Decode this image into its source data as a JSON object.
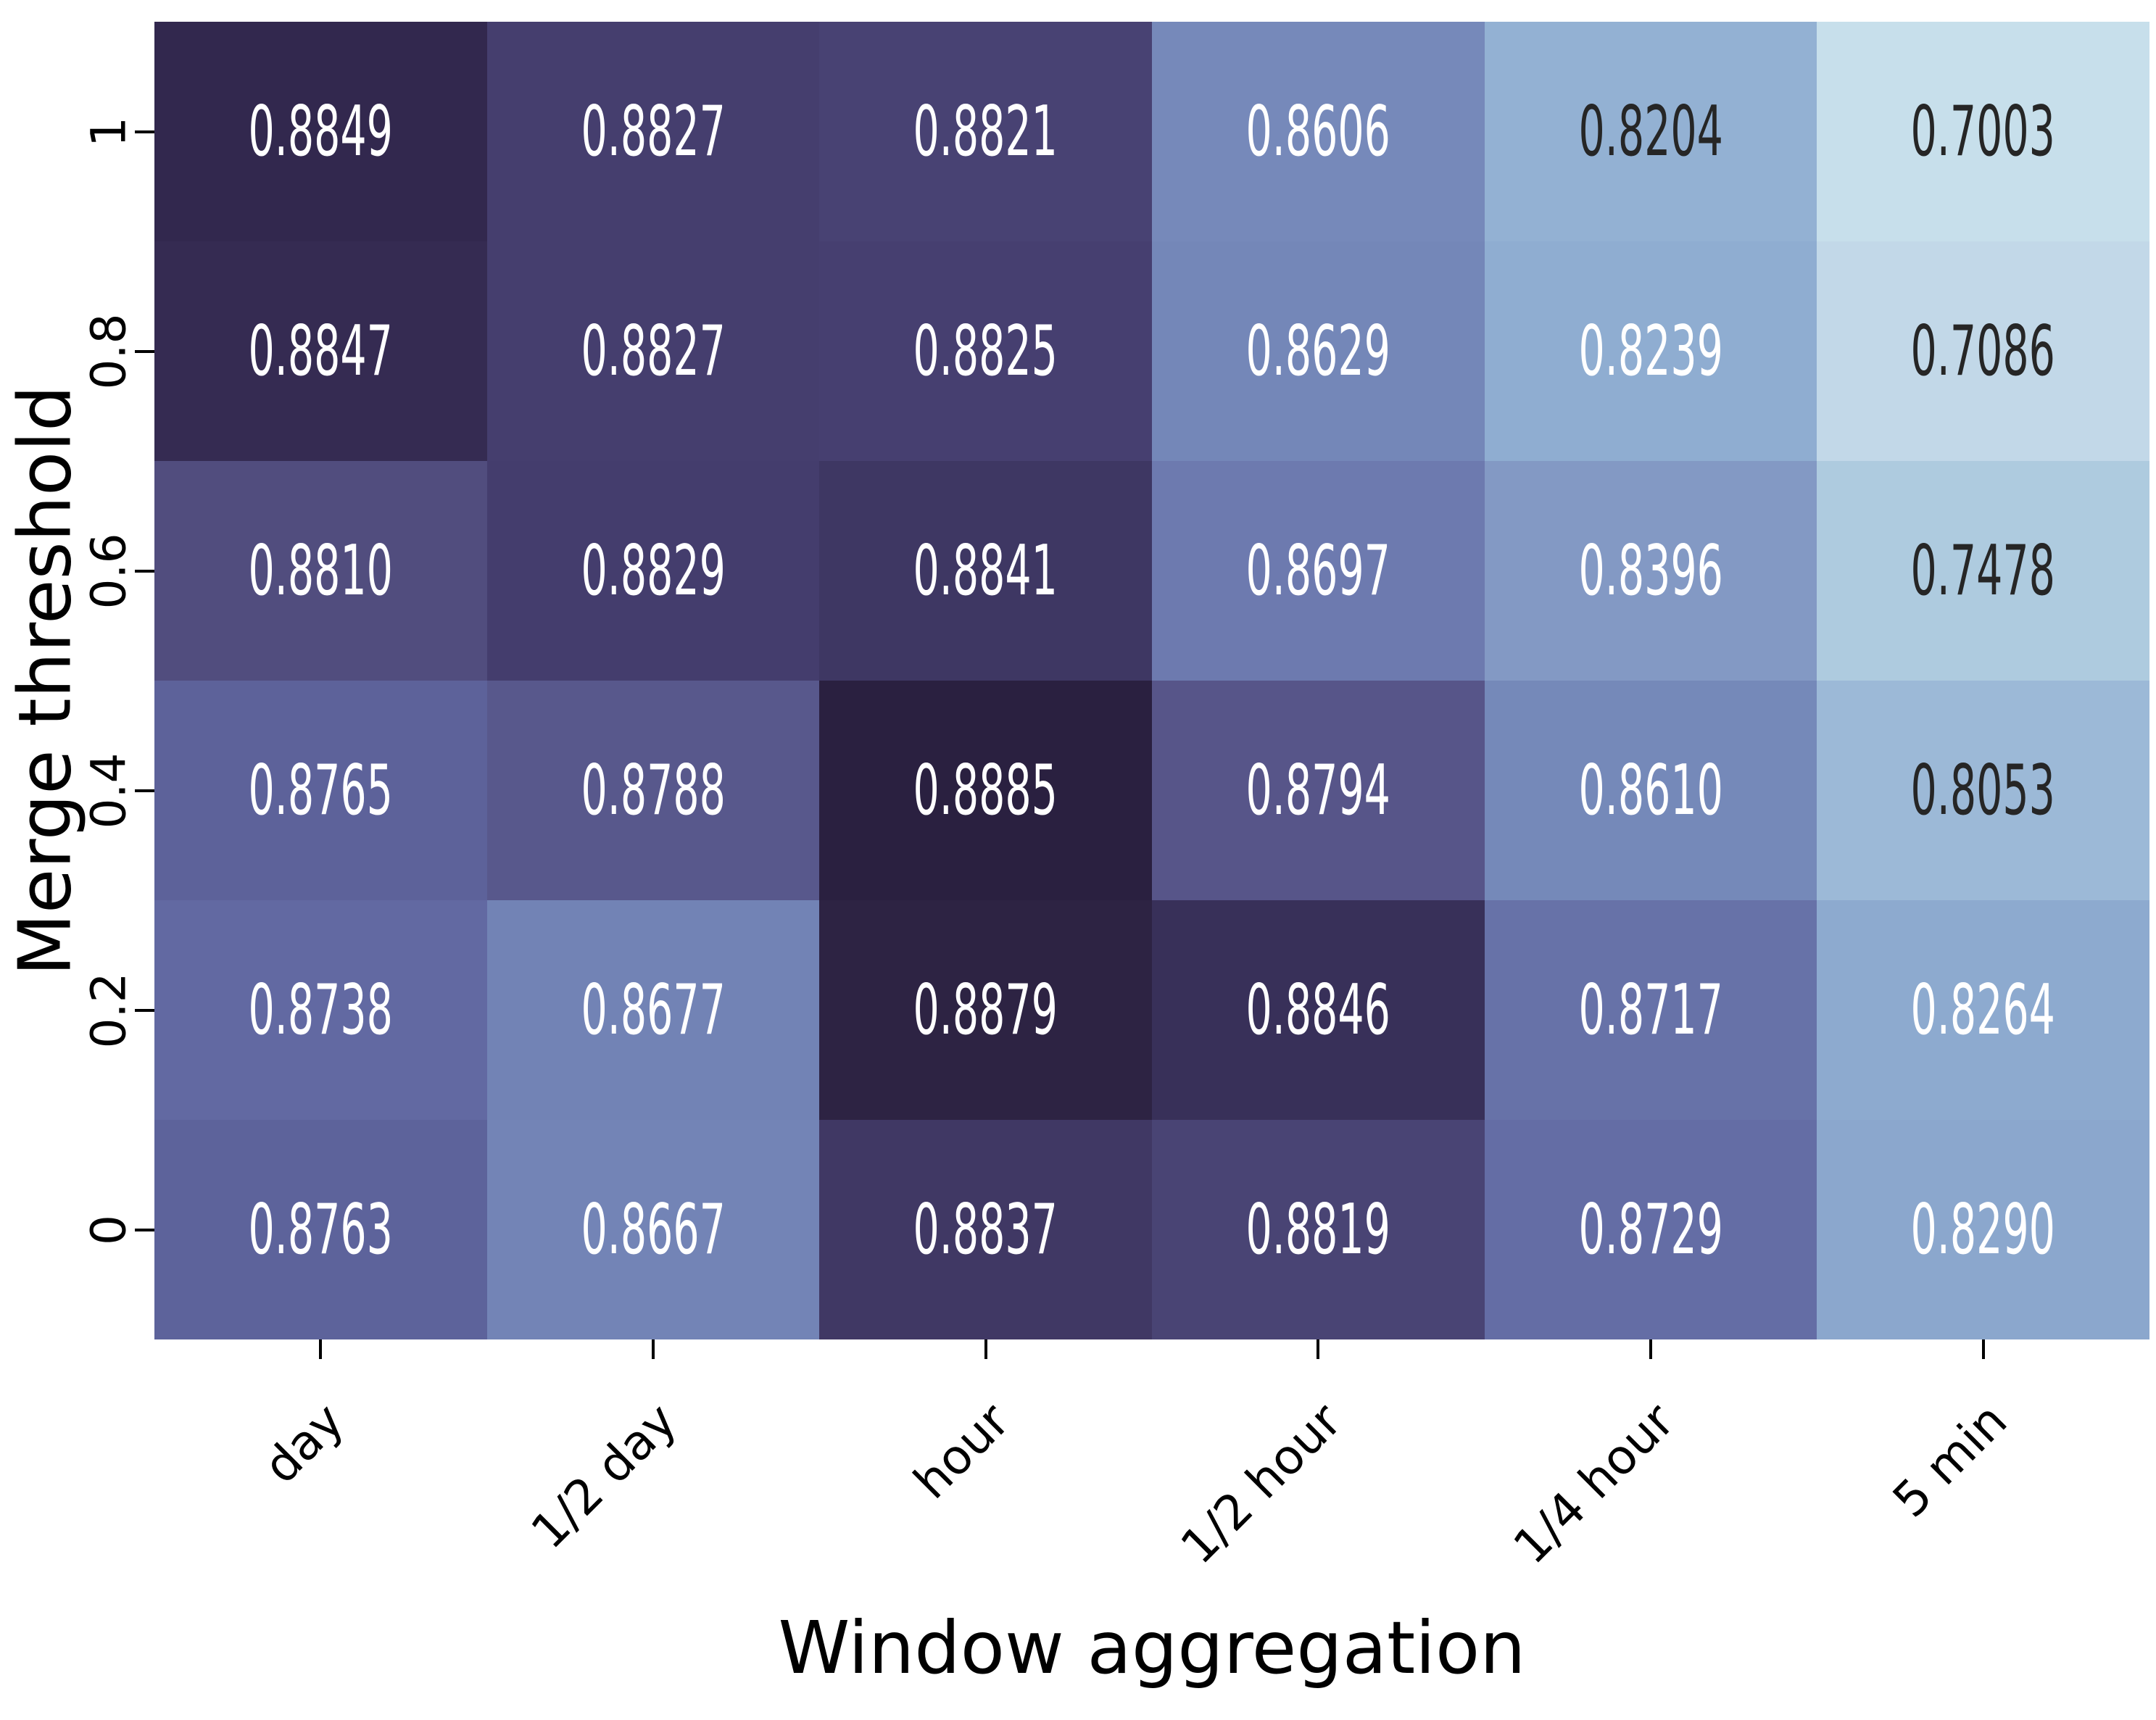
{
  "chart_data": {
    "type": "heatmap",
    "xlabel": "Window aggregation",
    "ylabel": "Merge threshold",
    "x_categories": [
      "day",
      "1/2 day",
      "hour",
      "1/2 hour",
      "1/4 hour",
      "5 min"
    ],
    "y_categories": [
      "1",
      "0.8",
      "0.6",
      "0.4",
      "0.2",
      "0"
    ],
    "values": [
      [
        "0.8849",
        "0.8827",
        "0.8821",
        "0.8606",
        "0.8204",
        "0.7003"
      ],
      [
        "0.8847",
        "0.8827",
        "0.8825",
        "0.8629",
        "0.8239",
        "0.7086"
      ],
      [
        "0.8810",
        "0.8829",
        "0.8841",
        "0.8697",
        "0.8396",
        "0.7478"
      ],
      [
        "0.8765",
        "0.8788",
        "0.8885",
        "0.8794",
        "0.8610",
        "0.8053"
      ],
      [
        "0.8738",
        "0.8677",
        "0.8879",
        "0.8846",
        "0.8717",
        "0.8264"
      ],
      [
        "0.8763",
        "0.8667",
        "0.8837",
        "0.8819",
        "0.8729",
        "0.8290"
      ]
    ],
    "cell_colors": [
      [
        "#32284e",
        "#453e6e",
        "#484273",
        "#7689ba",
        "#93b1d3",
        "#c7dfeb"
      ],
      [
        "#352b52",
        "#453e6e",
        "#463f70",
        "#7487b8",
        "#8fadd1",
        "#c2d8e8"
      ],
      [
        "#514d7e",
        "#443d6d",
        "#3e3763",
        "#6d7aaf",
        "#8399c4",
        "#aecbdf"
      ],
      [
        "#5d629a",
        "#58588c",
        "#2a2040",
        "#575589",
        "#7589b9",
        "#9cb9d7"
      ],
      [
        "#6269a2",
        "#7283b5",
        "#2d2343",
        "#383059",
        "#6772a8",
        "#8daacf"
      ],
      [
        "#5d639b",
        "#7384b6",
        "#403864",
        "#494474",
        "#646da5",
        "#8ba7cd"
      ]
    ],
    "annot_colors": [
      [
        "#ffffff",
        "#ffffff",
        "#ffffff",
        "#ffffff",
        "#262626",
        "#262626"
      ],
      [
        "#ffffff",
        "#ffffff",
        "#ffffff",
        "#ffffff",
        "#ffffff",
        "#262626"
      ],
      [
        "#ffffff",
        "#ffffff",
        "#ffffff",
        "#ffffff",
        "#ffffff",
        "#262626"
      ],
      [
        "#ffffff",
        "#ffffff",
        "#ffffff",
        "#ffffff",
        "#ffffff",
        "#262626"
      ],
      [
        "#ffffff",
        "#ffffff",
        "#ffffff",
        "#ffffff",
        "#ffffff",
        "#ffffff"
      ],
      [
        "#ffffff",
        "#ffffff",
        "#ffffff",
        "#ffffff",
        "#ffffff",
        "#ffffff"
      ]
    ],
    "value_range": {
      "min": "0.7003",
      "max": "0.8885"
    },
    "grid": "off",
    "legend": "none"
  }
}
